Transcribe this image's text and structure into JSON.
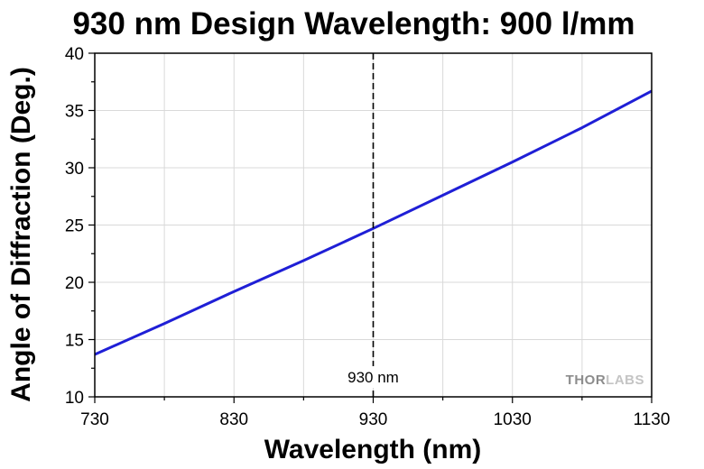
{
  "chart_data": {
    "type": "line",
    "title": "930 nm Design Wavelength: 900 l/mm",
    "xlabel": "Wavelength (nm)",
    "ylabel": "Angle of Diffraction (Deg.)",
    "xlim": [
      730,
      1130
    ],
    "ylim": [
      10,
      40
    ],
    "xticks": [
      730,
      830,
      930,
      1030,
      1130
    ],
    "yticks": [
      10,
      15,
      20,
      25,
      30,
      35,
      40
    ],
    "grid": true,
    "series": [
      {
        "color": "#1f1fd6",
        "x": [
          730,
          780,
          830,
          880,
          930,
          980,
          1030,
          1080,
          1130
        ],
        "y": [
          13.7,
          16.4,
          19.2,
          21.9,
          24.7,
          27.6,
          30.5,
          33.5,
          36.7
        ]
      }
    ],
    "annotations": [
      {
        "type": "vline",
        "x": 930,
        "label": "930 nm"
      }
    ],
    "watermark": {
      "text_a": "THOR",
      "text_b": "LABS"
    }
  }
}
